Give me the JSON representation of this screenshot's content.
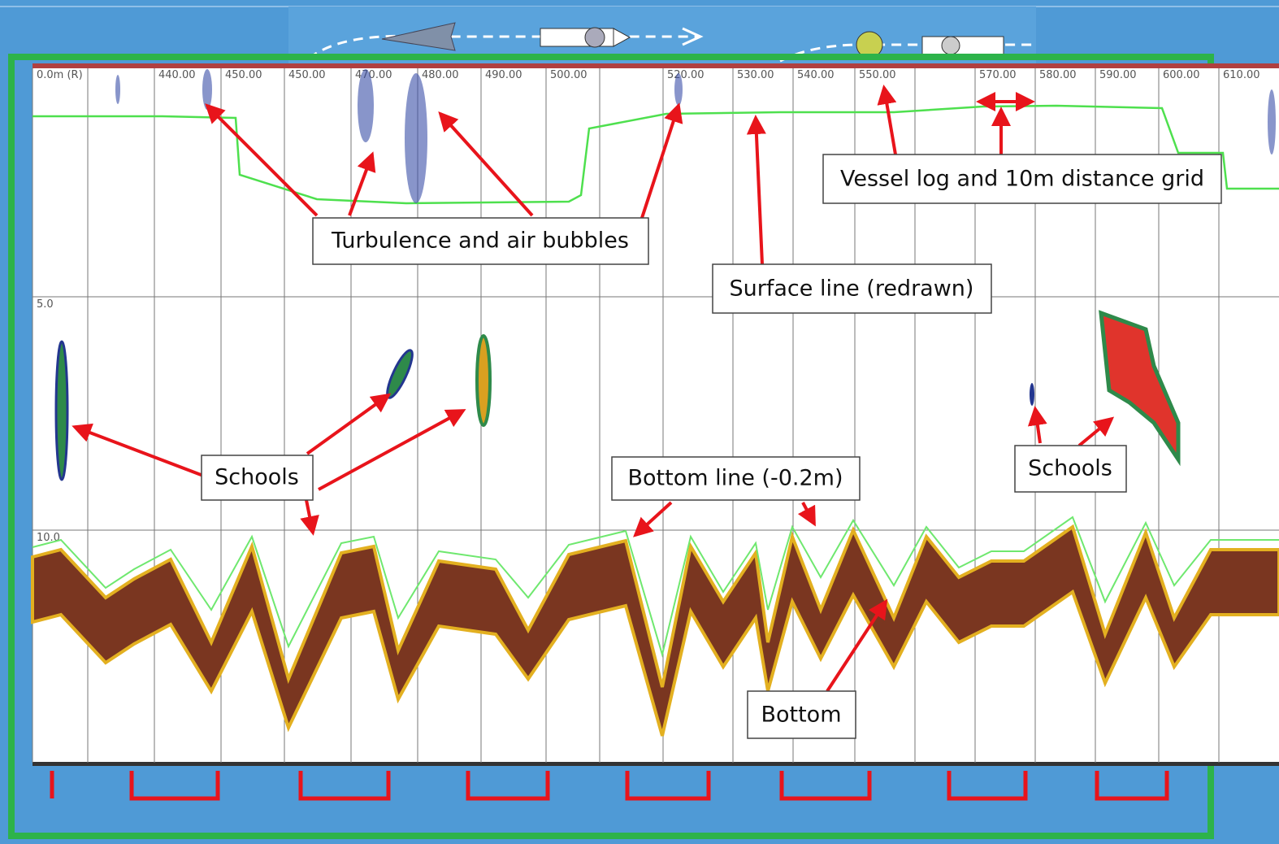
{
  "distance_labels": [
    "0.0m (R)",
    "440.00",
    "450.00",
    "450.00",
    "470.00",
    "480.00",
    "490.00",
    "500.00",
    "520.00",
    "530.00",
    "540.00",
    "550.00",
    "570.00",
    "580.00",
    "590.00",
    "600.00",
    "610.00"
  ],
  "depth_labels": [
    "5.0",
    "10.0"
  ],
  "annotations": {
    "turbulence": "Turbulence and air bubbles",
    "vessel_log": "Vessel log and 10m distance grid",
    "surface_line": "Surface line (redrawn)",
    "schools_left": "Schools",
    "bottom_line": "Bottom line (-0.2m)",
    "schools_right": "Schools",
    "bottom": "Bottom"
  }
}
